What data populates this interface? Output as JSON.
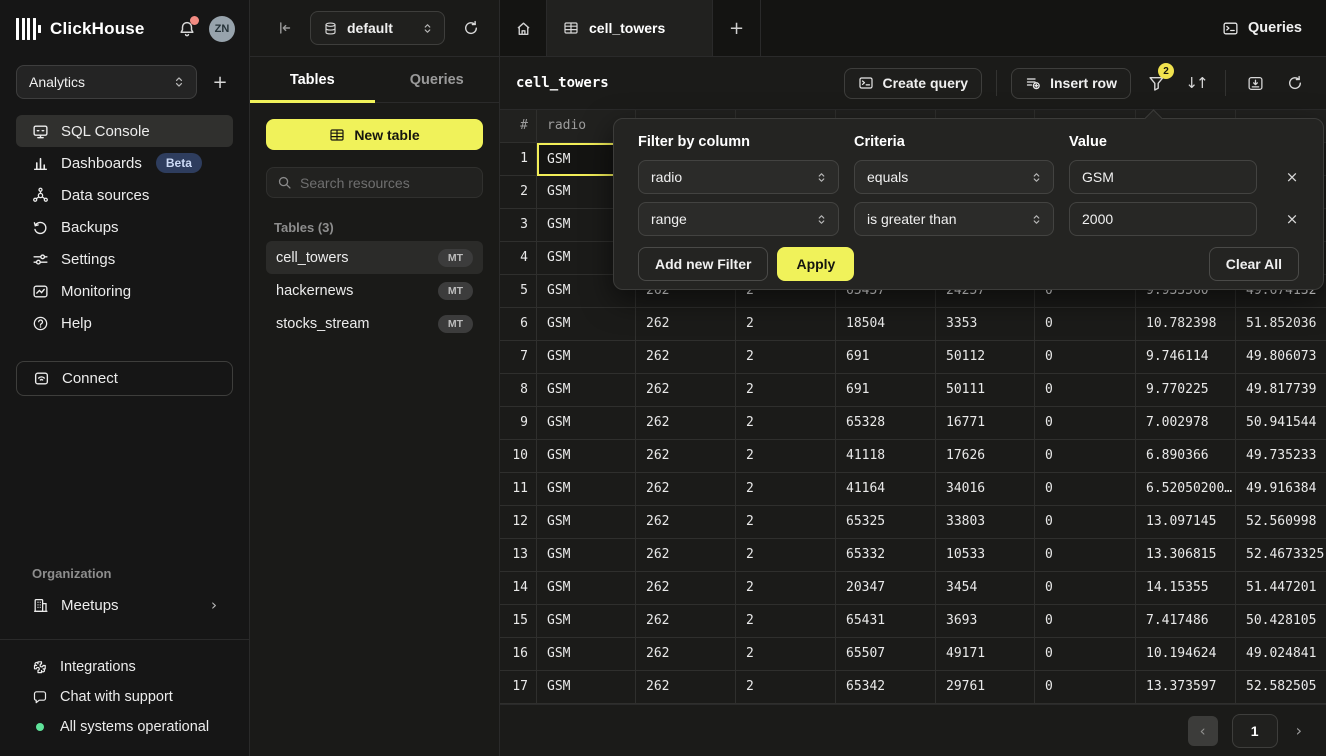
{
  "colors": {
    "accent_yellow": "#f0f25a",
    "selection_yellow": "#f2ee58",
    "beta_badge_bg": "#2e3d5e",
    "beta_badge_text": "#ccdaf6",
    "status_green": "#5fe39a",
    "notification_red": "#f28b82"
  },
  "sidebar": {
    "brand": "ClickHouse",
    "avatar": "ZN",
    "workspace_selector": "Analytics",
    "nav": [
      {
        "label": "SQL Console"
      },
      {
        "label": "Dashboards",
        "badge": "Beta"
      },
      {
        "label": "Data sources"
      },
      {
        "label": "Backups"
      },
      {
        "label": "Settings"
      },
      {
        "label": "Monitoring"
      },
      {
        "label": "Help"
      }
    ],
    "connect_label": "Connect",
    "organization": {
      "label": "Organization",
      "items": [
        {
          "label": "Meetups"
        }
      ]
    },
    "footer": [
      {
        "label": "Integrations"
      },
      {
        "label": "Chat with support"
      },
      {
        "label": "All systems operational"
      }
    ]
  },
  "explorer": {
    "database": "default",
    "tabs": [
      {
        "label": "Tables"
      },
      {
        "label": "Queries"
      }
    ],
    "new_table_label": "New table",
    "search_placeholder": "Search resources",
    "section_label": "Tables (3)",
    "tables": [
      {
        "name": "cell_towers",
        "badge": "MT"
      },
      {
        "name": "hackernews",
        "badge": "MT"
      },
      {
        "name": "stocks_stream",
        "badge": "MT"
      }
    ]
  },
  "topbar": {
    "active_tab": "cell_towers",
    "queries_label": "Queries"
  },
  "table_view": {
    "title": "cell_towers",
    "create_query_label": "Create query",
    "insert_row_label": "Insert row",
    "filter_badge": "2",
    "columns": [
      "#",
      "radio",
      "",
      "",
      "",
      "",
      "",
      "",
      ""
    ],
    "selected_cell": {
      "row": 0,
      "col": 1
    },
    "rows": [
      [
        "1",
        "GSM",
        "",
        "",
        "",
        "",
        "",
        "",
        ""
      ],
      [
        "2",
        "GSM",
        "",
        "",
        "",
        "",
        "",
        "",
        ""
      ],
      [
        "3",
        "GSM",
        "",
        "",
        "",
        "",
        "",
        "",
        ""
      ],
      [
        "4",
        "GSM",
        "",
        "",
        "",
        "",
        "",
        "",
        ""
      ],
      [
        "5",
        "GSM",
        "262",
        "2",
        "65457",
        "24257",
        "0",
        "9.933560",
        "49.674132"
      ],
      [
        "6",
        "GSM",
        "262",
        "2",
        "18504",
        "3353",
        "0",
        "10.782398",
        "51.852036"
      ],
      [
        "7",
        "GSM",
        "262",
        "2",
        "691",
        "50112",
        "0",
        "9.746114",
        "49.806073"
      ],
      [
        "8",
        "GSM",
        "262",
        "2",
        "691",
        "50111",
        "0",
        "9.770225",
        "49.817739"
      ],
      [
        "9",
        "GSM",
        "262",
        "2",
        "65328",
        "16771",
        "0",
        "7.002978",
        "50.941544"
      ],
      [
        "10",
        "GSM",
        "262",
        "2",
        "41118",
        "17626",
        "0",
        "6.890366",
        "49.735233"
      ],
      [
        "11",
        "GSM",
        "262",
        "2",
        "41164",
        "34016",
        "0",
        "6.52050200…",
        "49.916384"
      ],
      [
        "12",
        "GSM",
        "262",
        "2",
        "65325",
        "33803",
        "0",
        "13.097145",
        "52.560998"
      ],
      [
        "13",
        "GSM",
        "262",
        "2",
        "65332",
        "10533",
        "0",
        "13.306815",
        "52.4673325"
      ],
      [
        "14",
        "GSM",
        "262",
        "2",
        "20347",
        "3454",
        "0",
        "14.15355",
        "51.447201"
      ],
      [
        "15",
        "GSM",
        "262",
        "2",
        "65431",
        "3693",
        "0",
        "7.417486",
        "50.428105"
      ],
      [
        "16",
        "GSM",
        "262",
        "2",
        "65507",
        "49171",
        "0",
        "10.194624",
        "49.024841"
      ],
      [
        "17",
        "GSM",
        "262",
        "2",
        "65342",
        "29761",
        "0",
        "13.373597",
        "52.582505"
      ]
    ],
    "pagination": {
      "page": "1"
    }
  },
  "filter_popup": {
    "headers": {
      "column": "Filter by column",
      "criteria": "Criteria",
      "value": "Value"
    },
    "filters": [
      {
        "column": "radio",
        "criteria": "equals",
        "value": "GSM"
      },
      {
        "column": "range",
        "criteria": "is greater than",
        "value": "2000"
      }
    ],
    "add_label": "Add new Filter",
    "apply_label": "Apply",
    "clear_label": "Clear All"
  },
  "icons": {
    "prev": "‹",
    "next": "›",
    "close": "×",
    "plus": "+",
    "sort": "↓↑",
    "chevron_right": "›"
  }
}
